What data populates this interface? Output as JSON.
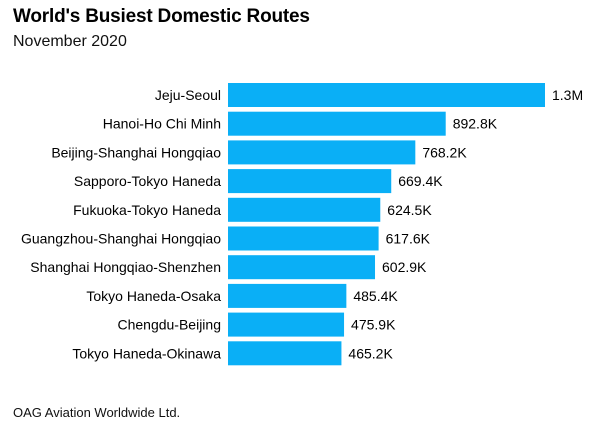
{
  "header": {
    "title": "World's Busiest Domestic Routes",
    "subtitle": "November 2020"
  },
  "footer": {
    "source": "OAG Aviation Worldwide Ltd."
  },
  "colors": {
    "bar": "#0AAFF6"
  },
  "chart_data": {
    "type": "bar",
    "orientation": "horizontal",
    "title": "World's Busiest Domestic Routes",
    "subtitle": "November 2020",
    "categories": [
      "Jeju-Seoul",
      "Hanoi-Ho Chi Minh",
      "Beijing-Shanghai Hongqiao",
      "Sapporo-Tokyo Haneda",
      "Fukuoka-Tokyo Haneda",
      "Guangzhou-Shanghai Hongqiao",
      "Shanghai Hongqiao-Shenzhen",
      "Tokyo Haneda-Osaka",
      "Chengdu-Beijing",
      "Tokyo Haneda-Okinawa"
    ],
    "values": [
      1300000,
      892800,
      768200,
      669400,
      624500,
      617600,
      602900,
      485400,
      475900,
      465200
    ],
    "value_labels": [
      "1.3M",
      "892.8K",
      "768.2K",
      "669.4K",
      "624.5K",
      "617.6K",
      "602.9K",
      "485.4K",
      "475.9K",
      "465.2K"
    ],
    "xlim": [
      0,
      1300000
    ],
    "grid": false,
    "legend": "none"
  }
}
